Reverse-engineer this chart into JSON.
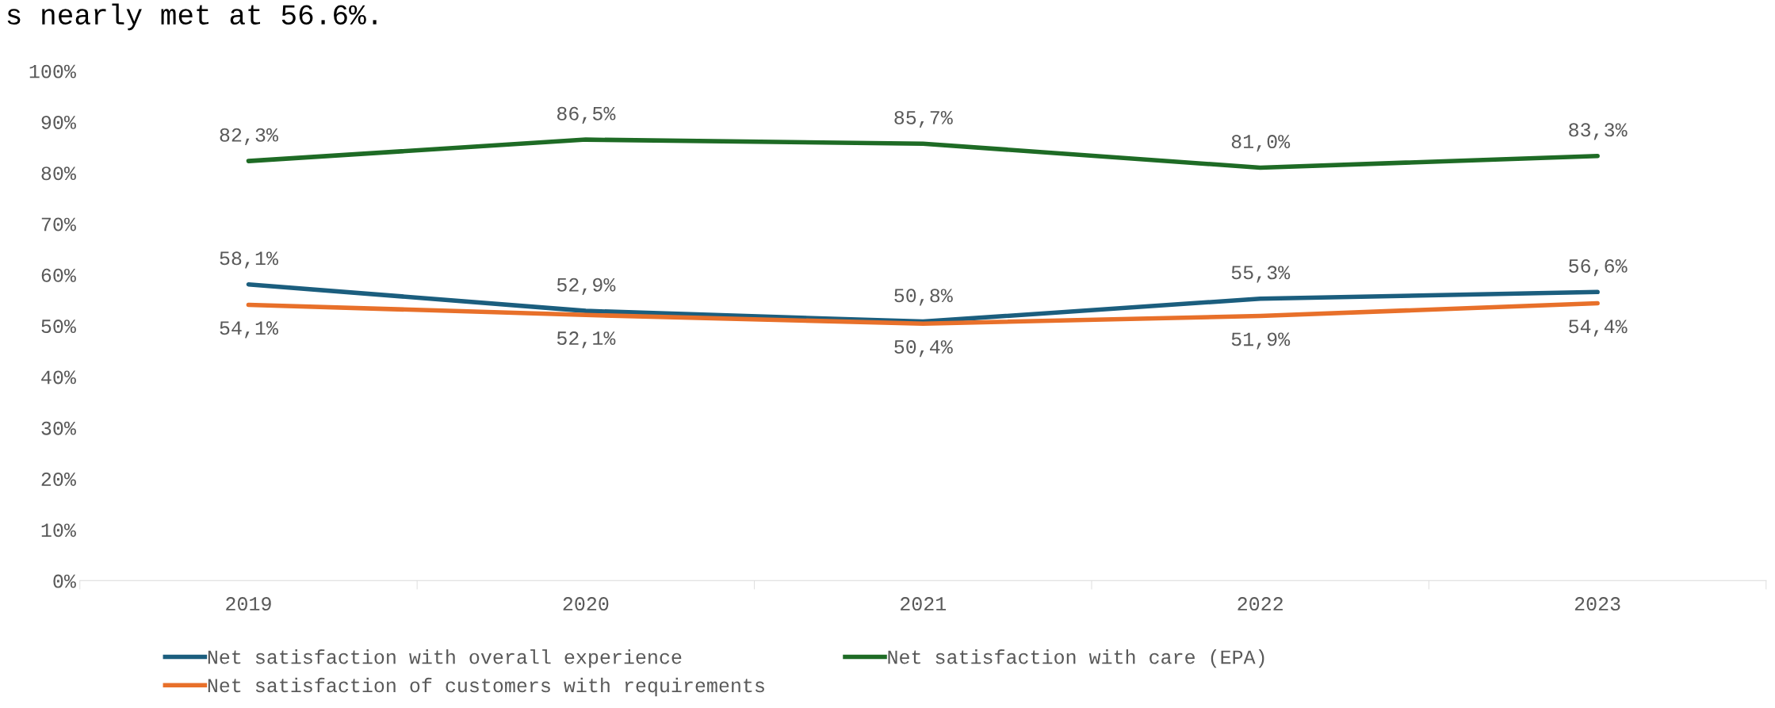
{
  "chart_data": {
    "type": "line",
    "title": "s nearly met at 56.6%.",
    "categories": [
      "2019",
      "2020",
      "2021",
      "2022",
      "2023"
    ],
    "series": [
      {
        "name": "Net satisfaction with overall experience",
        "color": "#1b5e7e",
        "values": [
          58.1,
          52.9,
          50.8,
          55.3,
          56.6
        ],
        "value_labels": [
          "58,1%",
          "52,9%",
          "50,8%",
          "55,3%",
          "56,6%"
        ]
      },
      {
        "name": "Net satisfaction of customers with requirements",
        "color": "#e8702a",
        "values": [
          54.1,
          52.1,
          50.4,
          51.9,
          54.4
        ],
        "value_labels": [
          "54,1%",
          "52,1%",
          "50,4%",
          "51,9%",
          "54,4%"
        ]
      },
      {
        "name": "Net satisfaction with care (EPA)",
        "color": "#1e6b25",
        "values": [
          82.3,
          86.5,
          85.7,
          81.0,
          83.3
        ],
        "value_labels": [
          "82,3%",
          "86,5%",
          "85,7%",
          "81,0%",
          "83,3%"
        ]
      }
    ],
    "ylim": [
      0,
      100
    ],
    "yticks": [
      {
        "value": 0,
        "label": "0%"
      },
      {
        "value": 10,
        "label": "10%"
      },
      {
        "value": 20,
        "label": "20%"
      },
      {
        "value": 30,
        "label": "30%"
      },
      {
        "value": 40,
        "label": "40%"
      },
      {
        "value": 50,
        "label": "50%"
      },
      {
        "value": 60,
        "label": "60%"
      },
      {
        "value": 70,
        "label": "70%"
      },
      {
        "value": 80,
        "label": "80%"
      },
      {
        "value": 90,
        "label": "90%"
      },
      {
        "value": 100,
        "label": "100%"
      }
    ],
    "grid": false,
    "legend": "bottom",
    "marker": "none",
    "line_style": "solid"
  }
}
